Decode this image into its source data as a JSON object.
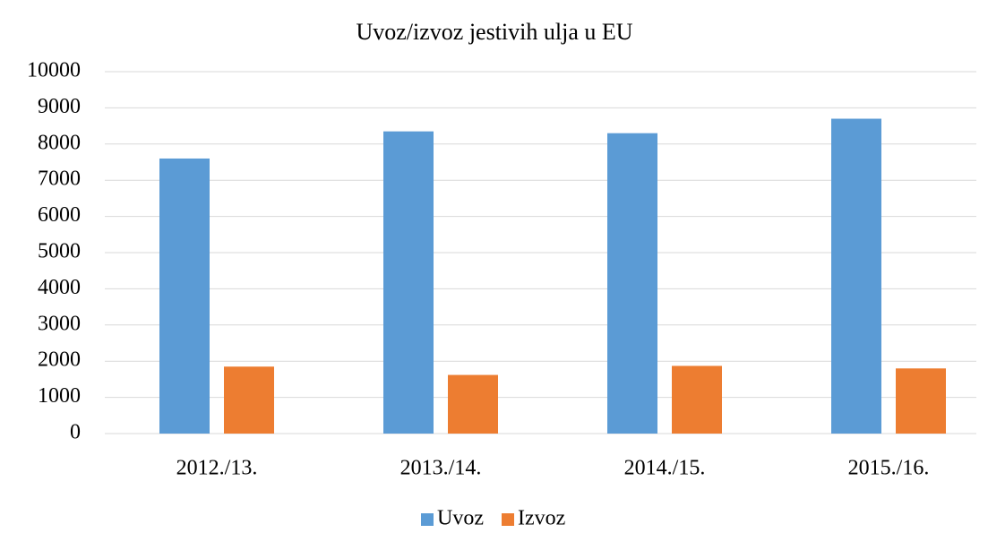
{
  "chart_data": {
    "type": "bar",
    "title": "Uvoz/izvoz jestivih ulja u EU",
    "categories": [
      "2012./13.",
      "2013./14.",
      "2014./15.",
      "2015./16."
    ],
    "series": [
      {
        "name": "Uvoz",
        "color": "#5b9bd5",
        "values": [
          7600,
          8350,
          8300,
          8700
        ]
      },
      {
        "name": "Izvoz",
        "color": "#ed7d31",
        "values": [
          1850,
          1620,
          1870,
          1800
        ]
      }
    ],
    "ylim": [
      0,
      10000
    ],
    "yticks": [
      0,
      1000,
      2000,
      3000,
      4000,
      5000,
      6000,
      7000,
      8000,
      9000,
      10000
    ],
    "grid": true,
    "legend": "bottom"
  }
}
